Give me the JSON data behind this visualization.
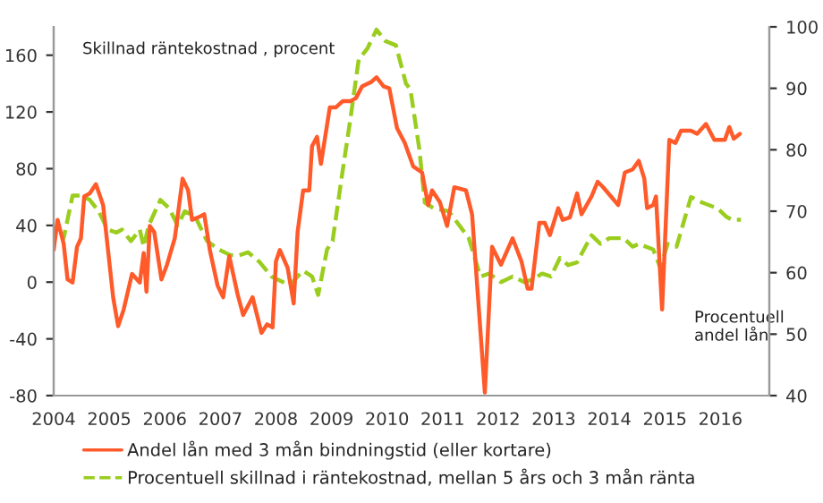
{
  "chart_data": {
    "type": "line",
    "ylabel": "Skillnad räntekostnad , procent",
    "y2label": "Procentuell andel lån",
    "xlim": [
      2004,
      2016.88
    ],
    "xticks": [
      2004,
      2005,
      2006,
      2007,
      2008,
      2009,
      2010,
      2011,
      2012,
      2013,
      2014,
      2015,
      2016
    ],
    "ylim": [
      -80,
      180
    ],
    "yticks": [
      -80,
      -40,
      0,
      40,
      80,
      120,
      160
    ],
    "y2lim": [
      40,
      100
    ],
    "y2ticks": [
      40,
      50,
      60,
      70,
      80,
      90,
      100
    ],
    "grid": false,
    "legend": "bottom",
    "series": [
      {
        "name": "Andel lån med 3 mån bindningstid (eller kortare)",
        "color": "#ff5a2a",
        "axis": "y2",
        "line_style": "solid",
        "x": [
          2004.0,
          2004.07,
          2004.18,
          2004.25,
          2004.34,
          2004.42,
          2004.49,
          2004.55,
          2004.65,
          2004.76,
          2004.89,
          2004.99,
          2005.07,
          2005.16,
          2005.26,
          2005.41,
          2005.55,
          2005.62,
          2005.67,
          2005.73,
          2005.81,
          2005.94,
          2006.04,
          2006.18,
          2006.32,
          2006.42,
          2006.49,
          2006.6,
          2006.71,
          2006.81,
          2006.95,
          2007.05,
          2007.16,
          2007.31,
          2007.41,
          2007.58,
          2007.74,
          2007.84,
          2007.94,
          2008.0,
          2008.07,
          2008.21,
          2008.32,
          2008.39,
          2008.49,
          2008.6,
          2008.65,
          2008.74,
          2008.81,
          2008.97,
          2009.08,
          2009.2,
          2009.34,
          2009.44,
          2009.55,
          2009.71,
          2009.81,
          2009.94,
          2010.04,
          2010.18,
          2010.32,
          2010.47,
          2010.63,
          2010.74,
          2010.81,
          2010.95,
          2011.08,
          2011.21,
          2011.42,
          2011.53,
          2011.76,
          2011.89,
          2012.05,
          2012.26,
          2012.42,
          2012.53,
          2012.6,
          2012.74,
          2012.84,
          2012.93,
          2013.08,
          2013.16,
          2013.29,
          2013.42,
          2013.5,
          2013.68,
          2013.79,
          2013.89,
          2014.03,
          2014.16,
          2014.28,
          2014.42,
          2014.53,
          2014.63,
          2014.68,
          2014.79,
          2014.84,
          2014.95,
          2015.08,
          2015.19,
          2015.29,
          2015.47,
          2015.58,
          2015.74,
          2015.89,
          2016.08,
          2016.16,
          2016.24,
          2016.35
        ],
        "values": [
          63.7,
          68.6,
          64.7,
          58.9,
          58.4,
          64.2,
          65.6,
          72.4,
          72.9,
          74.4,
          71.0,
          62.7,
          56.0,
          51.3,
          54.0,
          59.8,
          58.4,
          63.2,
          56.9,
          67.6,
          66.6,
          58.9,
          61.3,
          65.6,
          75.3,
          73.4,
          68.6,
          69.0,
          69.5,
          63.7,
          57.9,
          56.0,
          62.7,
          56.5,
          53.1,
          56.0,
          50.2,
          51.6,
          51.1,
          61.8,
          63.7,
          60.8,
          55.0,
          66.6,
          73.4,
          73.4,
          80.6,
          82.1,
          77.7,
          86.9,
          86.9,
          87.9,
          87.9,
          88.4,
          90.3,
          91.0,
          91.8,
          90.3,
          90.0,
          83.5,
          81.1,
          77.3,
          76.3,
          71.0,
          73.4,
          71.5,
          67.6,
          73.9,
          73.4,
          69.5,
          40.5,
          64.2,
          61.3,
          65.6,
          61.8,
          57.4,
          57.4,
          68.1,
          68.1,
          66.1,
          70.5,
          68.6,
          69.0,
          72.9,
          69.5,
          72.4,
          74.8,
          73.9,
          72.4,
          71.0,
          76.3,
          76.8,
          78.2,
          75.3,
          70.5,
          71.0,
          72.4,
          54.0,
          81.6,
          81.1,
          83.1,
          83.1,
          82.6,
          84.2,
          81.6,
          81.6,
          83.7,
          81.8,
          82.6
        ]
      },
      {
        "name": "Procentuell skillnad i räntekostnad, mellan 5 års och 3 mån ränta",
        "color": "#9acd1e",
        "axis": "y",
        "line_style": "dashed",
        "x": [
          2004.0,
          2004.07,
          2004.18,
          2004.34,
          2004.49,
          2004.65,
          2004.81,
          2004.97,
          2005.13,
          2005.23,
          2005.39,
          2005.55,
          2005.62,
          2005.71,
          2005.92,
          2006.08,
          2006.23,
          2006.36,
          2006.55,
          2006.76,
          2006.97,
          2007.18,
          2007.34,
          2007.5,
          2007.71,
          2007.92,
          2008.13,
          2008.25,
          2008.39,
          2008.49,
          2008.65,
          2008.76,
          2008.92,
          2009.02,
          2009.18,
          2009.34,
          2009.49,
          2009.65,
          2009.81,
          2009.97,
          2010.16,
          2010.34,
          2010.42,
          2010.58,
          2010.68,
          2010.84,
          2011.11,
          2011.32,
          2011.47,
          2011.68,
          2011.84,
          2012.05,
          2012.26,
          2012.47,
          2012.63,
          2012.79,
          2012.95,
          2013.11,
          2013.26,
          2013.42,
          2013.68,
          2013.84,
          2014.0,
          2014.26,
          2014.42,
          2014.53,
          2014.79,
          2014.92,
          2015.05,
          2015.21,
          2015.47,
          2015.68,
          2015.95,
          2016.11,
          2016.21,
          2016.37
        ],
        "values": [
          31,
          40,
          31,
          61,
          61,
          58,
          50,
          37,
          35,
          37,
          29,
          37,
          25,
          40,
          58,
          52,
          40,
          50,
          46,
          29,
          23,
          19,
          19,
          21,
          14,
          4,
          0,
          -2,
          4,
          8,
          4,
          -9,
          23,
          29,
          73,
          115,
          157,
          165,
          178,
          170,
          167,
          140,
          136,
          94,
          56,
          52,
          50,
          39,
          31,
          4,
          6,
          0,
          4,
          0,
          2,
          6,
          4,
          17,
          12,
          14,
          33,
          27,
          31,
          31,
          25,
          27,
          23,
          10,
          27,
          25,
          60,
          56,
          52,
          46,
          44,
          44
        ]
      }
    ]
  }
}
